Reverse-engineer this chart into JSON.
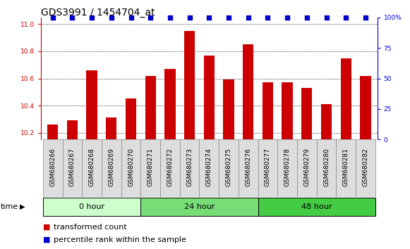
{
  "title": "GDS3991 / 1454704_at",
  "samples": [
    "GSM680266",
    "GSM680267",
    "GSM680268",
    "GSM680269",
    "GSM680270",
    "GSM680271",
    "GSM680272",
    "GSM680273",
    "GSM680274",
    "GSM680275",
    "GSM680276",
    "GSM680277",
    "GSM680278",
    "GSM680279",
    "GSM680280",
    "GSM680281",
    "GSM680282"
  ],
  "bar_values": [
    10.26,
    10.29,
    10.66,
    10.31,
    10.45,
    10.62,
    10.67,
    10.95,
    10.77,
    10.59,
    10.85,
    10.57,
    10.57,
    10.53,
    10.41,
    10.75,
    10.62
  ],
  "bar_color": "#cc0000",
  "percentile_color": "#0000cc",
  "ylim_left": [
    10.15,
    11.05
  ],
  "ylim_right": [
    -15.56,
    100
  ],
  "yticks_left": [
    10.2,
    10.4,
    10.6,
    10.8,
    11.0
  ],
  "ytick_right_labels": [
    "0",
    "25",
    "50",
    "75",
    "100%"
  ],
  "ytick_right_vals": [
    0,
    25,
    50,
    75,
    100
  ],
  "groups": [
    {
      "label": "0 hour",
      "start": 0,
      "end": 5,
      "color": "#ccffcc"
    },
    {
      "label": "24 hour",
      "start": 5,
      "end": 11,
      "color": "#77dd77"
    },
    {
      "label": "48 hour",
      "start": 11,
      "end": 17,
      "color": "#44cc44"
    }
  ],
  "bar_width": 0.55,
  "background_color": "#ffffff",
  "plot_bg_color": "#ffffff",
  "xlabel_time": "time",
  "legend_tc": "transformed count",
  "legend_pr": "percentile rank within the sample",
  "title_fontsize": 10,
  "tick_fontsize": 6.5,
  "group_fontsize": 8,
  "legend_fontsize": 8,
  "axis_label_color_left": "#cc0000",
  "axis_label_color_right": "#0000cc"
}
